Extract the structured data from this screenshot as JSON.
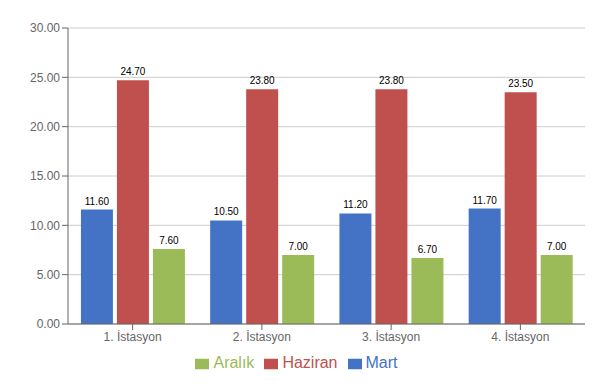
{
  "chart_data": {
    "type": "bar",
    "categories": [
      "1. İstasyon",
      "2. İstasyon",
      "3. İstasyon",
      "4. İstasyon"
    ],
    "series": [
      {
        "name": "Mart",
        "color": "#4472C4",
        "values": [
          11.6,
          10.5,
          11.2,
          11.7
        ],
        "value_labels": [
          "11.60",
          "10.50",
          "11.20",
          "11.70"
        ]
      },
      {
        "name": "Haziran",
        "color": "#C0504D",
        "values": [
          24.7,
          23.8,
          23.8,
          23.5
        ],
        "value_labels": [
          "24.70",
          "23.80",
          "23.80",
          "23.50"
        ]
      },
      {
        "name": "Aralık",
        "color": "#9BBB59",
        "values": [
          7.6,
          7.0,
          6.7,
          7.0
        ],
        "value_labels": [
          "7.60",
          "7.00",
          "6.70",
          "7.00"
        ]
      }
    ],
    "ylim": [
      0,
      30
    ],
    "yticks": [
      {
        "value": 0,
        "label": "0.00"
      },
      {
        "value": 5,
        "label": "5.00"
      },
      {
        "value": 10,
        "label": "10.00"
      },
      {
        "value": 15,
        "label": "15.00"
      },
      {
        "value": 20,
        "label": "20.00"
      },
      {
        "value": 25,
        "label": "25.00"
      },
      {
        "value": 30,
        "label": "30.00"
      }
    ],
    "grid": true,
    "data_labels": true
  }
}
